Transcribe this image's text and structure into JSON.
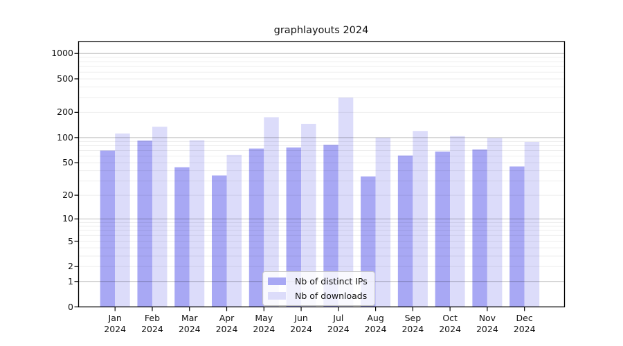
{
  "title": "graphlayouts 2024",
  "chart_data": {
    "type": "bar",
    "title": "graphlayouts 2024",
    "categories": [
      "Jan",
      "Feb",
      "Mar",
      "Apr",
      "May",
      "Jun",
      "Jul",
      "Aug",
      "Sep",
      "Oct",
      "Nov",
      "Dec"
    ],
    "x_year_label": "2024",
    "series": [
      {
        "name": "Nb of distinct IPs",
        "color": "#a8a8f4",
        "values": [
          70,
          92,
          44,
          35,
          74,
          76,
          82,
          34,
          61,
          68,
          72,
          45
        ]
      },
      {
        "name": "Nb of downloads",
        "color": "#dcdcfa",
        "values": [
          112,
          135,
          93,
          62,
          175,
          146,
          300,
          100,
          120,
          104,
          99,
          89
        ]
      }
    ],
    "yscale": "log10(x+1)",
    "yticks": [
      1000,
      500,
      200,
      100,
      50,
      20,
      10,
      5,
      2,
      1,
      0
    ],
    "ylim": [
      0,
      1385
    ],
    "grid": true,
    "legend_position": "bottom-center"
  },
  "colors": {
    "grid_major": "#c2c2c2",
    "grid_minor": "#ececec",
    "axis": "#000000"
  }
}
